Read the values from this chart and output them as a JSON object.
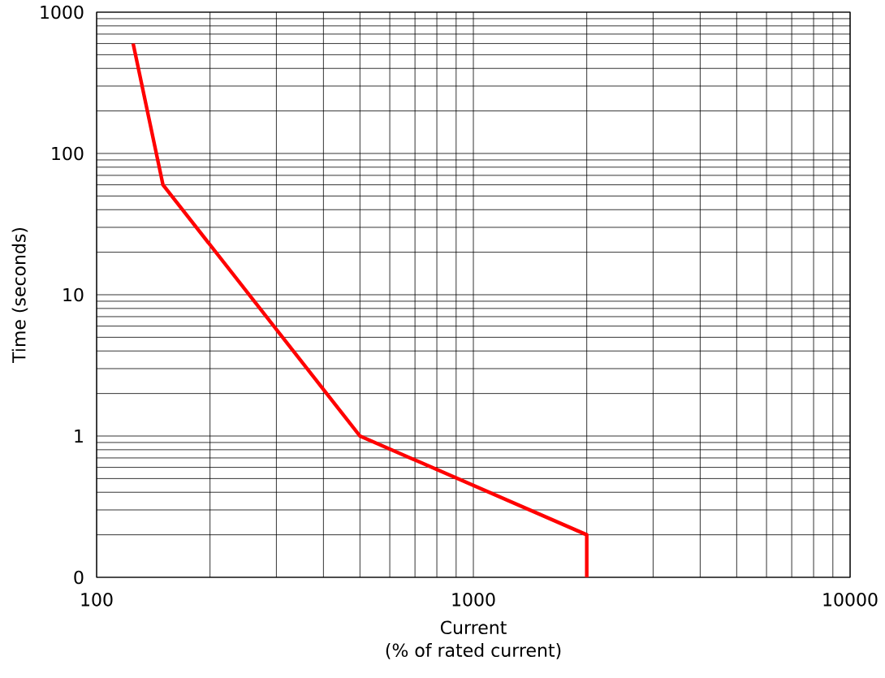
{
  "chart_data": {
    "type": "line",
    "xlabel": "Current",
    "ylabel": "Time (seconds)",
    "annotations": [
      "(% of rated current)"
    ],
    "x": [
      125,
      150,
      500,
      2000,
      2000
    ],
    "series": [
      {
        "color": "#ff0000",
        "values": [
          600,
          60,
          1,
          0.2,
          0.1
        ]
      }
    ],
    "log": "xy",
    "xlim": [
      100,
      10000
    ],
    "ylim": [
      0.1,
      1000
    ],
    "xticks": [
      100,
      1000,
      10000
    ],
    "yticks": [
      {
        "value": 0.1,
        "label": "0"
      },
      1,
      10,
      100,
      1000
    ],
    "grid": true,
    "marker": "none",
    "line_style": "solid"
  }
}
